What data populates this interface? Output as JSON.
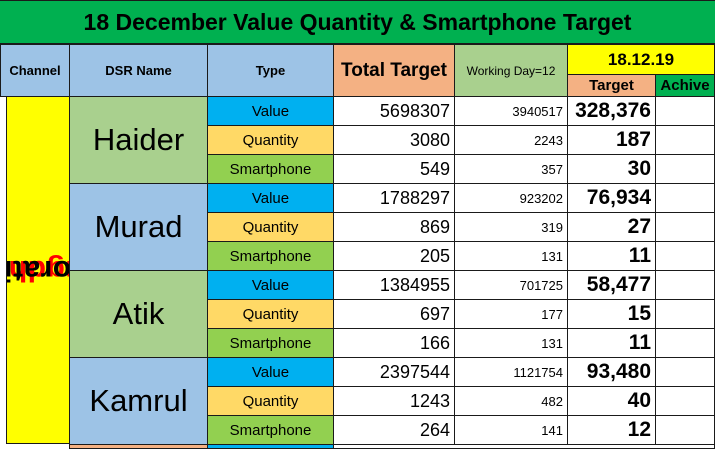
{
  "title": "18 December Value Quantity & Smartphone Target",
  "headers": {
    "channel": "Channel",
    "dsr_name": "DSR Name",
    "type": "Type",
    "total_target": "Total Target",
    "working_day": "Working Day=12",
    "date": "18.12.19",
    "target": "Target",
    "achive": "Achive"
  },
  "channel": {
    "word1": "Mugdho",
    "word2": "Corporation"
  },
  "rows": [
    {
      "name": "Haider",
      "items": [
        {
          "type": "Value",
          "total": "5698307",
          "wd": "3940517",
          "target": "328,376"
        },
        {
          "type": "Quantity",
          "total": "3080",
          "wd": "2243",
          "target": "187"
        },
        {
          "type": "Smartphone",
          "total": "549",
          "wd": "357",
          "target": "30"
        }
      ]
    },
    {
      "name": "Murad",
      "items": [
        {
          "type": "Value",
          "total": "1788297",
          "wd": "923202",
          "target": "76,934"
        },
        {
          "type": "Quantity",
          "total": "869",
          "wd": "319",
          "target": "27"
        },
        {
          "type": "Smartphone",
          "total": "205",
          "wd": "131",
          "target": "11"
        }
      ]
    },
    {
      "name": "Atik",
      "items": [
        {
          "type": "Value",
          "total": "1384955",
          "wd": "701725",
          "target": "58,477"
        },
        {
          "type": "Quantity",
          "total": "697",
          "wd": "177",
          "target": "15"
        },
        {
          "type": "Smartphone",
          "total": "166",
          "wd": "131",
          "target": "11"
        }
      ]
    },
    {
      "name": "Kamrul",
      "items": [
        {
          "type": "Value",
          "total": "2397544",
          "wd": "1121754",
          "target": "93,480"
        },
        {
          "type": "Quantity",
          "total": "1243",
          "wd": "482",
          "target": "40"
        },
        {
          "type": "Smartphone",
          "total": "264",
          "wd": "141",
          "target": "12"
        }
      ]
    }
  ]
}
